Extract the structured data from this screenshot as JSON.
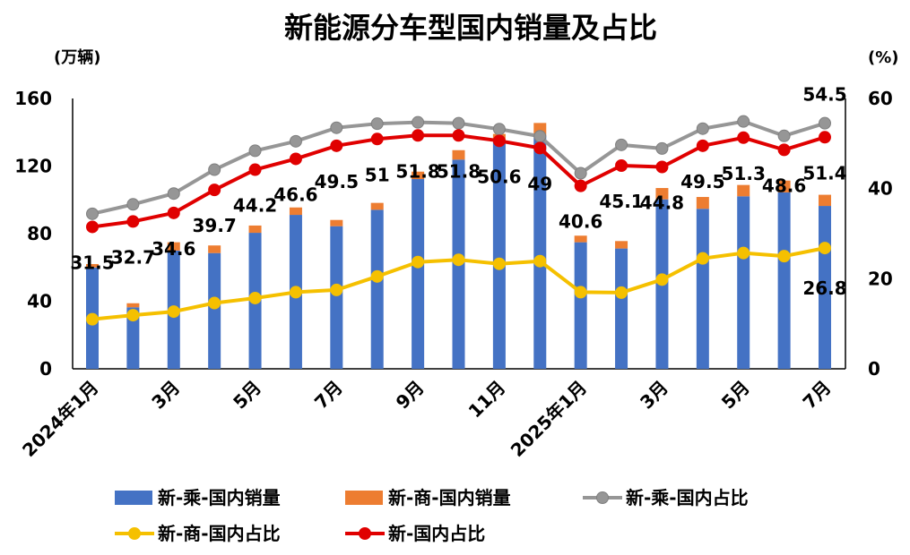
{
  "chart_data": {
    "type": "bar+line",
    "title": "新能源分车型国内销量及占比",
    "ylabel_left": "(万辆)",
    "ylabel_right": "(%)",
    "ylim_left": [
      0,
      160
    ],
    "yticks_left": [
      "0",
      "40",
      "80",
      "120",
      "160"
    ],
    "ylim_right": [
      0,
      60
    ],
    "yticks_right": [
      "0",
      "20",
      "40",
      "60"
    ],
    "grid": false,
    "legend_position": "bottom",
    "categories": [
      "2024年1月",
      "2024年2月",
      "2024年3月",
      "2024年4月",
      "2024年5月",
      "2024年6月",
      "2024年7月",
      "2024年8月",
      "2024年9月",
      "2024年10月",
      "2024年11月",
      "2024年12月",
      "2025年1月",
      "2025年2月",
      "2025年3月",
      "2025年4月",
      "2025年5月",
      "2025年6月",
      "2025年7月"
    ],
    "tick_labels": [
      "2024年1月",
      "",
      "3月",
      "",
      "5月",
      "",
      "7月",
      "",
      "9月",
      "",
      "11月",
      "",
      "2025年1月",
      "",
      "3月",
      "",
      "5月",
      "",
      "7月"
    ],
    "series": [
      {
        "name": "新-乘-国内销量",
        "type": "bar",
        "axis": "left",
        "color": "#4472C4",
        "values": [
          60,
          36.4,
          70,
          68.5,
          80.5,
          91.1,
          84.4,
          94.1,
          112.3,
          123.8,
          135,
          138,
          74.9,
          71.2,
          100.3,
          94.7,
          102.1,
          104.4,
          96.4
        ]
      },
      {
        "name": "新-商-国内销量",
        "type": "bar-stacked",
        "axis": "left",
        "color": "#ED7D31",
        "values": [
          2,
          2.4,
          4.9,
          4.5,
          4.3,
          4.4,
          3.7,
          4.1,
          4.4,
          5.6,
          4,
          7.5,
          3.9,
          4.4,
          6.7,
          7,
          6.7,
          7,
          6.6
        ]
      },
      {
        "name": "新-乘-国内占比",
        "type": "line",
        "axis": "right",
        "color": "#969696",
        "values": [
          34.4,
          36.5,
          38.9,
          44.2,
          48.4,
          50.5,
          53.5,
          54.4,
          54.7,
          54.5,
          53.2,
          51.6,
          43.4,
          49.7,
          48.9,
          53.3,
          54.9,
          51.7,
          54.5
        ],
        "labels": {
          "18": "54.5"
        }
      },
      {
        "name": "新-商-国内占比",
        "type": "line",
        "axis": "right",
        "color": "#F5C000",
        "values": [
          11.0,
          11.9,
          12.7,
          14.6,
          15.7,
          17.0,
          17.5,
          20.5,
          23.7,
          24.2,
          23.3,
          23.9,
          17.0,
          16.9,
          19.8,
          24.5,
          25.7,
          25.0,
          26.8
        ],
        "labels": {
          "18": "26.8"
        }
      },
      {
        "name": "新-国内占比",
        "type": "line",
        "axis": "right",
        "color": "#E00000",
        "values": [
          31.5,
          32.7,
          34.6,
          39.7,
          44.2,
          46.6,
          49.5,
          51,
          51.8,
          51.8,
          50.6,
          49,
          40.6,
          45.1,
          44.8,
          49.5,
          51.3,
          48.6,
          51.4
        ],
        "labels": [
          "31.5",
          "32.7",
          "34.6",
          "39.7",
          "44.2",
          "46.6",
          "49.5",
          "51",
          "51.8",
          "51.8",
          "50.6",
          "49",
          "40.6",
          "45.1",
          "44.8",
          "49.5",
          "51.3",
          "48.6",
          "51.4"
        ]
      }
    ]
  }
}
